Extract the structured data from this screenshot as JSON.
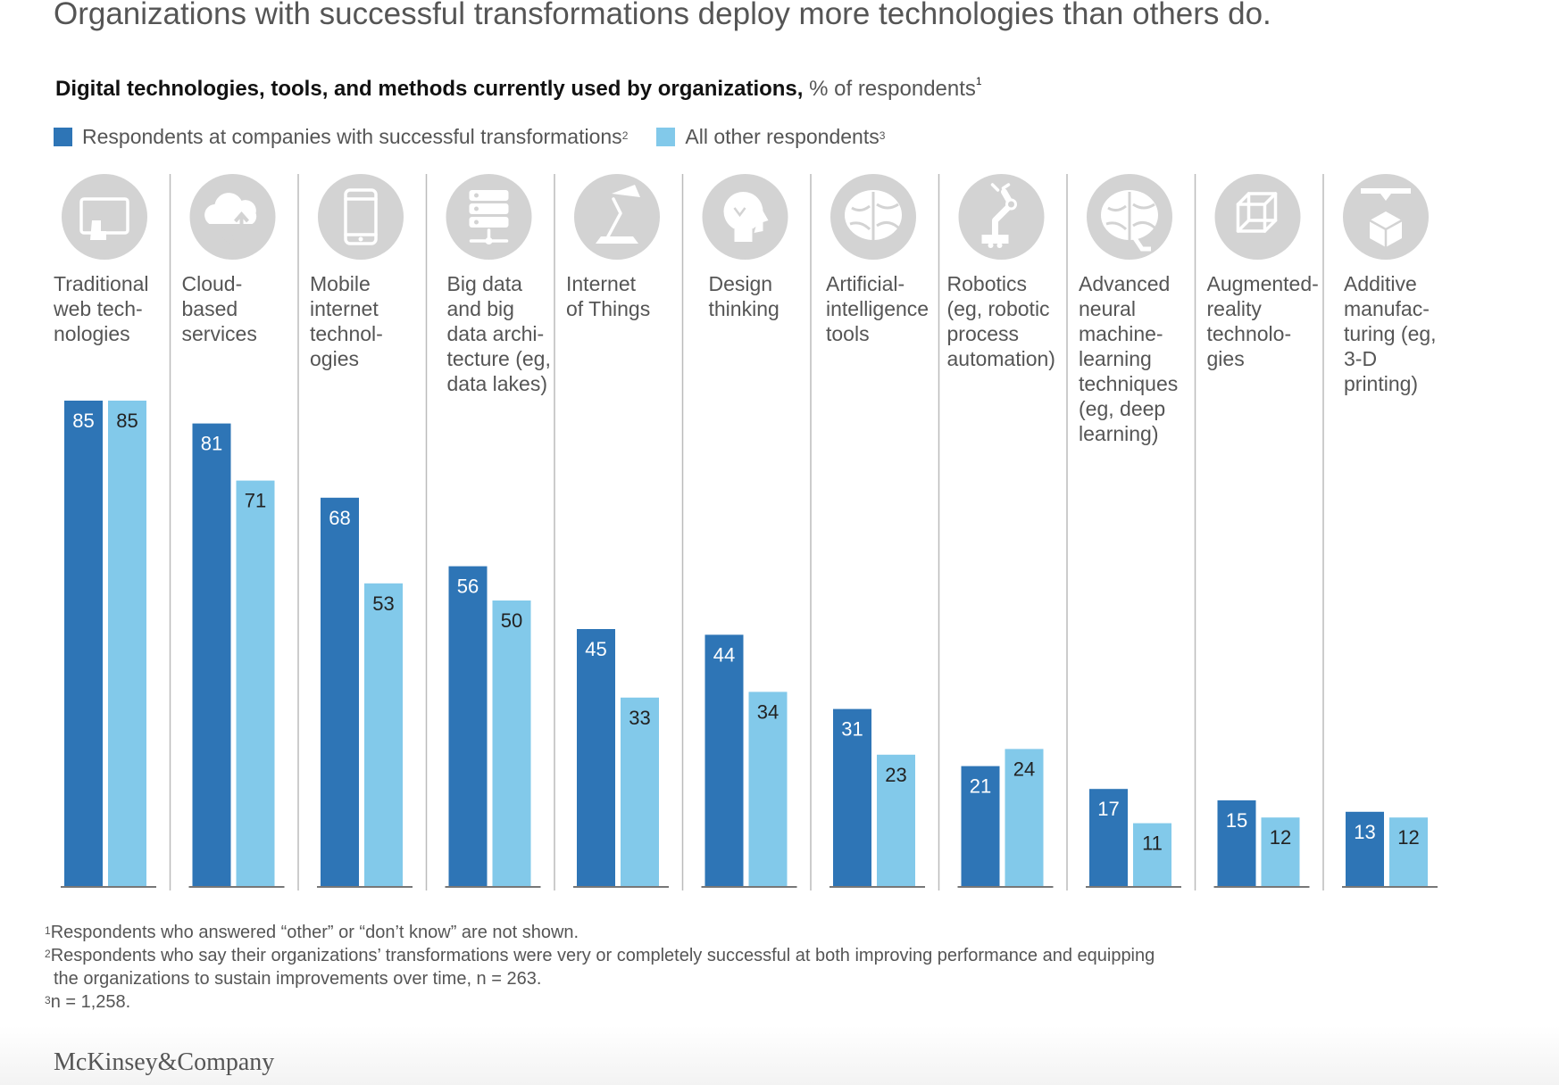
{
  "headline": "Organizations with successful transformations deploy more technologies than others do.",
  "subtitle": {
    "bold": "Digital technologies, tools, and methods currently used by organizations,",
    "unit": "% of respondents",
    "sup": "1"
  },
  "colors": {
    "success": "#2e75b6",
    "other": "#82c9ea",
    "icon_bg": "#d3d3d3",
    "axis": "#777777"
  },
  "legend": [
    {
      "label": "Respondents at companies with successful transformations",
      "sup": "2"
    },
    {
      "label": "All other respondents",
      "sup": "3"
    }
  ],
  "chart_data": {
    "type": "bar",
    "title": "Digital technologies, tools, and methods currently used by organizations, % of respondents",
    "categories": [
      "Traditional web technologies",
      "Cloud-based services",
      "Mobile internet technologies",
      "Big data and big data architecture (eg, data lakes)",
      "Internet of Things",
      "Design thinking",
      "Artificial-intelligence tools",
      "Robotics (eg, robotic process automation)",
      "Advanced neural machine-learning techniques (eg, deep learning)",
      "Augmented-reality technologies",
      "Additive manufacturing (eg, 3-D printing)"
    ],
    "category_label_lines": [
      [
        "Traditional",
        "web tech-",
        "nologies"
      ],
      [
        "Cloud-",
        "based",
        "services"
      ],
      [
        "Mobile",
        "internet",
        "technol-",
        "ogies"
      ],
      [
        "Big data",
        "and big",
        "data archi-",
        "tecture (eg,",
        "data lakes)"
      ],
      [
        "Internet",
        "of Things"
      ],
      [
        "Design",
        "thinking"
      ],
      [
        "Artificial-",
        "intelligence",
        "tools"
      ],
      [
        "Robotics",
        "(eg, robotic",
        "process",
        "automation)"
      ],
      [
        "Advanced",
        "neural",
        "machine-",
        "learning",
        "techniques",
        "(eg, deep",
        "learning)"
      ],
      [
        "Augmented-",
        "reality",
        "technolo-",
        "gies"
      ],
      [
        "Additive",
        "manufac-",
        "turing (eg,",
        "3-D",
        "printing)"
      ]
    ],
    "icons": [
      "web-browser-icon",
      "cloud-icon",
      "mobile-phone-icon",
      "server-stack-icon",
      "desk-lamp-icon",
      "lightbulb-head-icon",
      "brain-icon",
      "robot-arm-icon",
      "neural-brain-icon",
      "cube-icon",
      "3d-printer-icon"
    ],
    "series": [
      {
        "name": "Respondents at companies with successful transformations",
        "values": [
          85,
          81,
          68,
          56,
          45,
          44,
          31,
          21,
          17,
          15,
          13
        ]
      },
      {
        "name": "All other respondents",
        "values": [
          85,
          71,
          53,
          50,
          33,
          34,
          23,
          24,
          11,
          12,
          12
        ]
      }
    ],
    "ylim": [
      0,
      100
    ],
    "grid": false,
    "legend_position": "top-left"
  },
  "footnotes": [
    {
      "sup": "1",
      "text": "Respondents who answered “other” or “don’t know” are not shown."
    },
    {
      "sup": "2",
      "text": "Respondents who say their organizations’ transformations were very or completely successful at both improving performance and equipping"
    },
    {
      "sup": "",
      "text": "the organizations to sustain improvements over time, n = 263."
    },
    {
      "sup": "3",
      "text": "n = 1,258."
    }
  ],
  "logo": "McKinsey&Company"
}
